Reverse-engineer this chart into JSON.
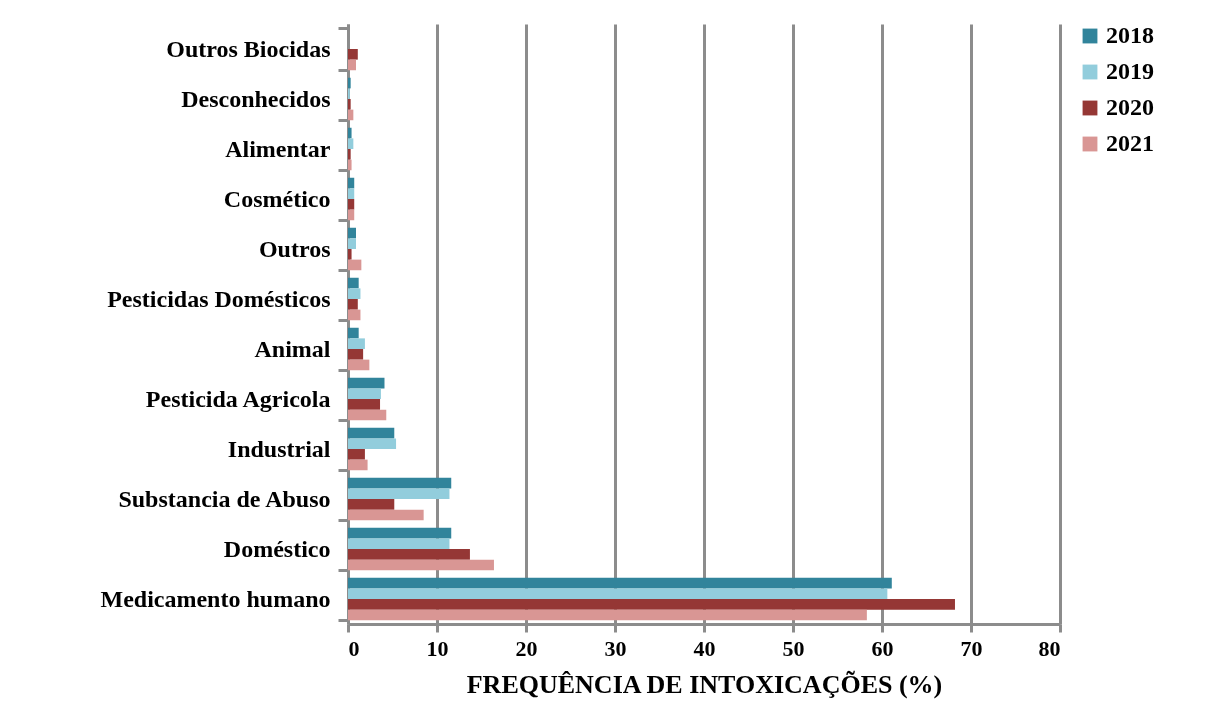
{
  "chart_data": {
    "type": "bar",
    "orientation": "horizontal",
    "xlabel": "FREQUÊNCIA DE INTOXICAÇÕES (%)",
    "categories": [
      "Outros Biocidas",
      "Desconhecidos",
      "Alimentar",
      "Cosmético",
      "Outros",
      "Pesticidas Domésticos",
      "Animal",
      "Pesticida Agricola",
      "Industrial",
      "Substancia de Abuso",
      "Doméstico",
      "Medicamento humano"
    ],
    "series": [
      {
        "name": "2018",
        "color": "#31849b",
        "values": [
          null,
          0.3,
          0.4,
          0.7,
          0.9,
          1.2,
          1.2,
          4.1,
          5.2,
          11.6,
          11.6,
          61.1
        ]
      },
      {
        "name": "2019",
        "color": "#92cddc",
        "values": [
          null,
          0.2,
          0.6,
          0.7,
          0.9,
          1.4,
          1.9,
          3.7,
          5.4,
          11.4,
          11.4,
          60.6
        ]
      },
      {
        "name": "2020",
        "color": "#953735",
        "values": [
          1.1,
          0.3,
          0.3,
          0.7,
          0.4,
          1.1,
          1.7,
          3.6,
          1.9,
          5.2,
          13.7,
          68.2
        ]
      },
      {
        "name": "2021",
        "color": "#d99694",
        "values": [
          0.9,
          0.6,
          0.4,
          0.7,
          1.5,
          1.4,
          2.4,
          4.3,
          2.2,
          8.5,
          16.4,
          58.3
        ]
      }
    ],
    "xlim": [
      0,
      80
    ],
    "xticks": [
      0,
      10,
      20,
      30,
      40,
      50,
      60,
      70,
      80
    ],
    "grid": "x",
    "legend": "right"
  }
}
